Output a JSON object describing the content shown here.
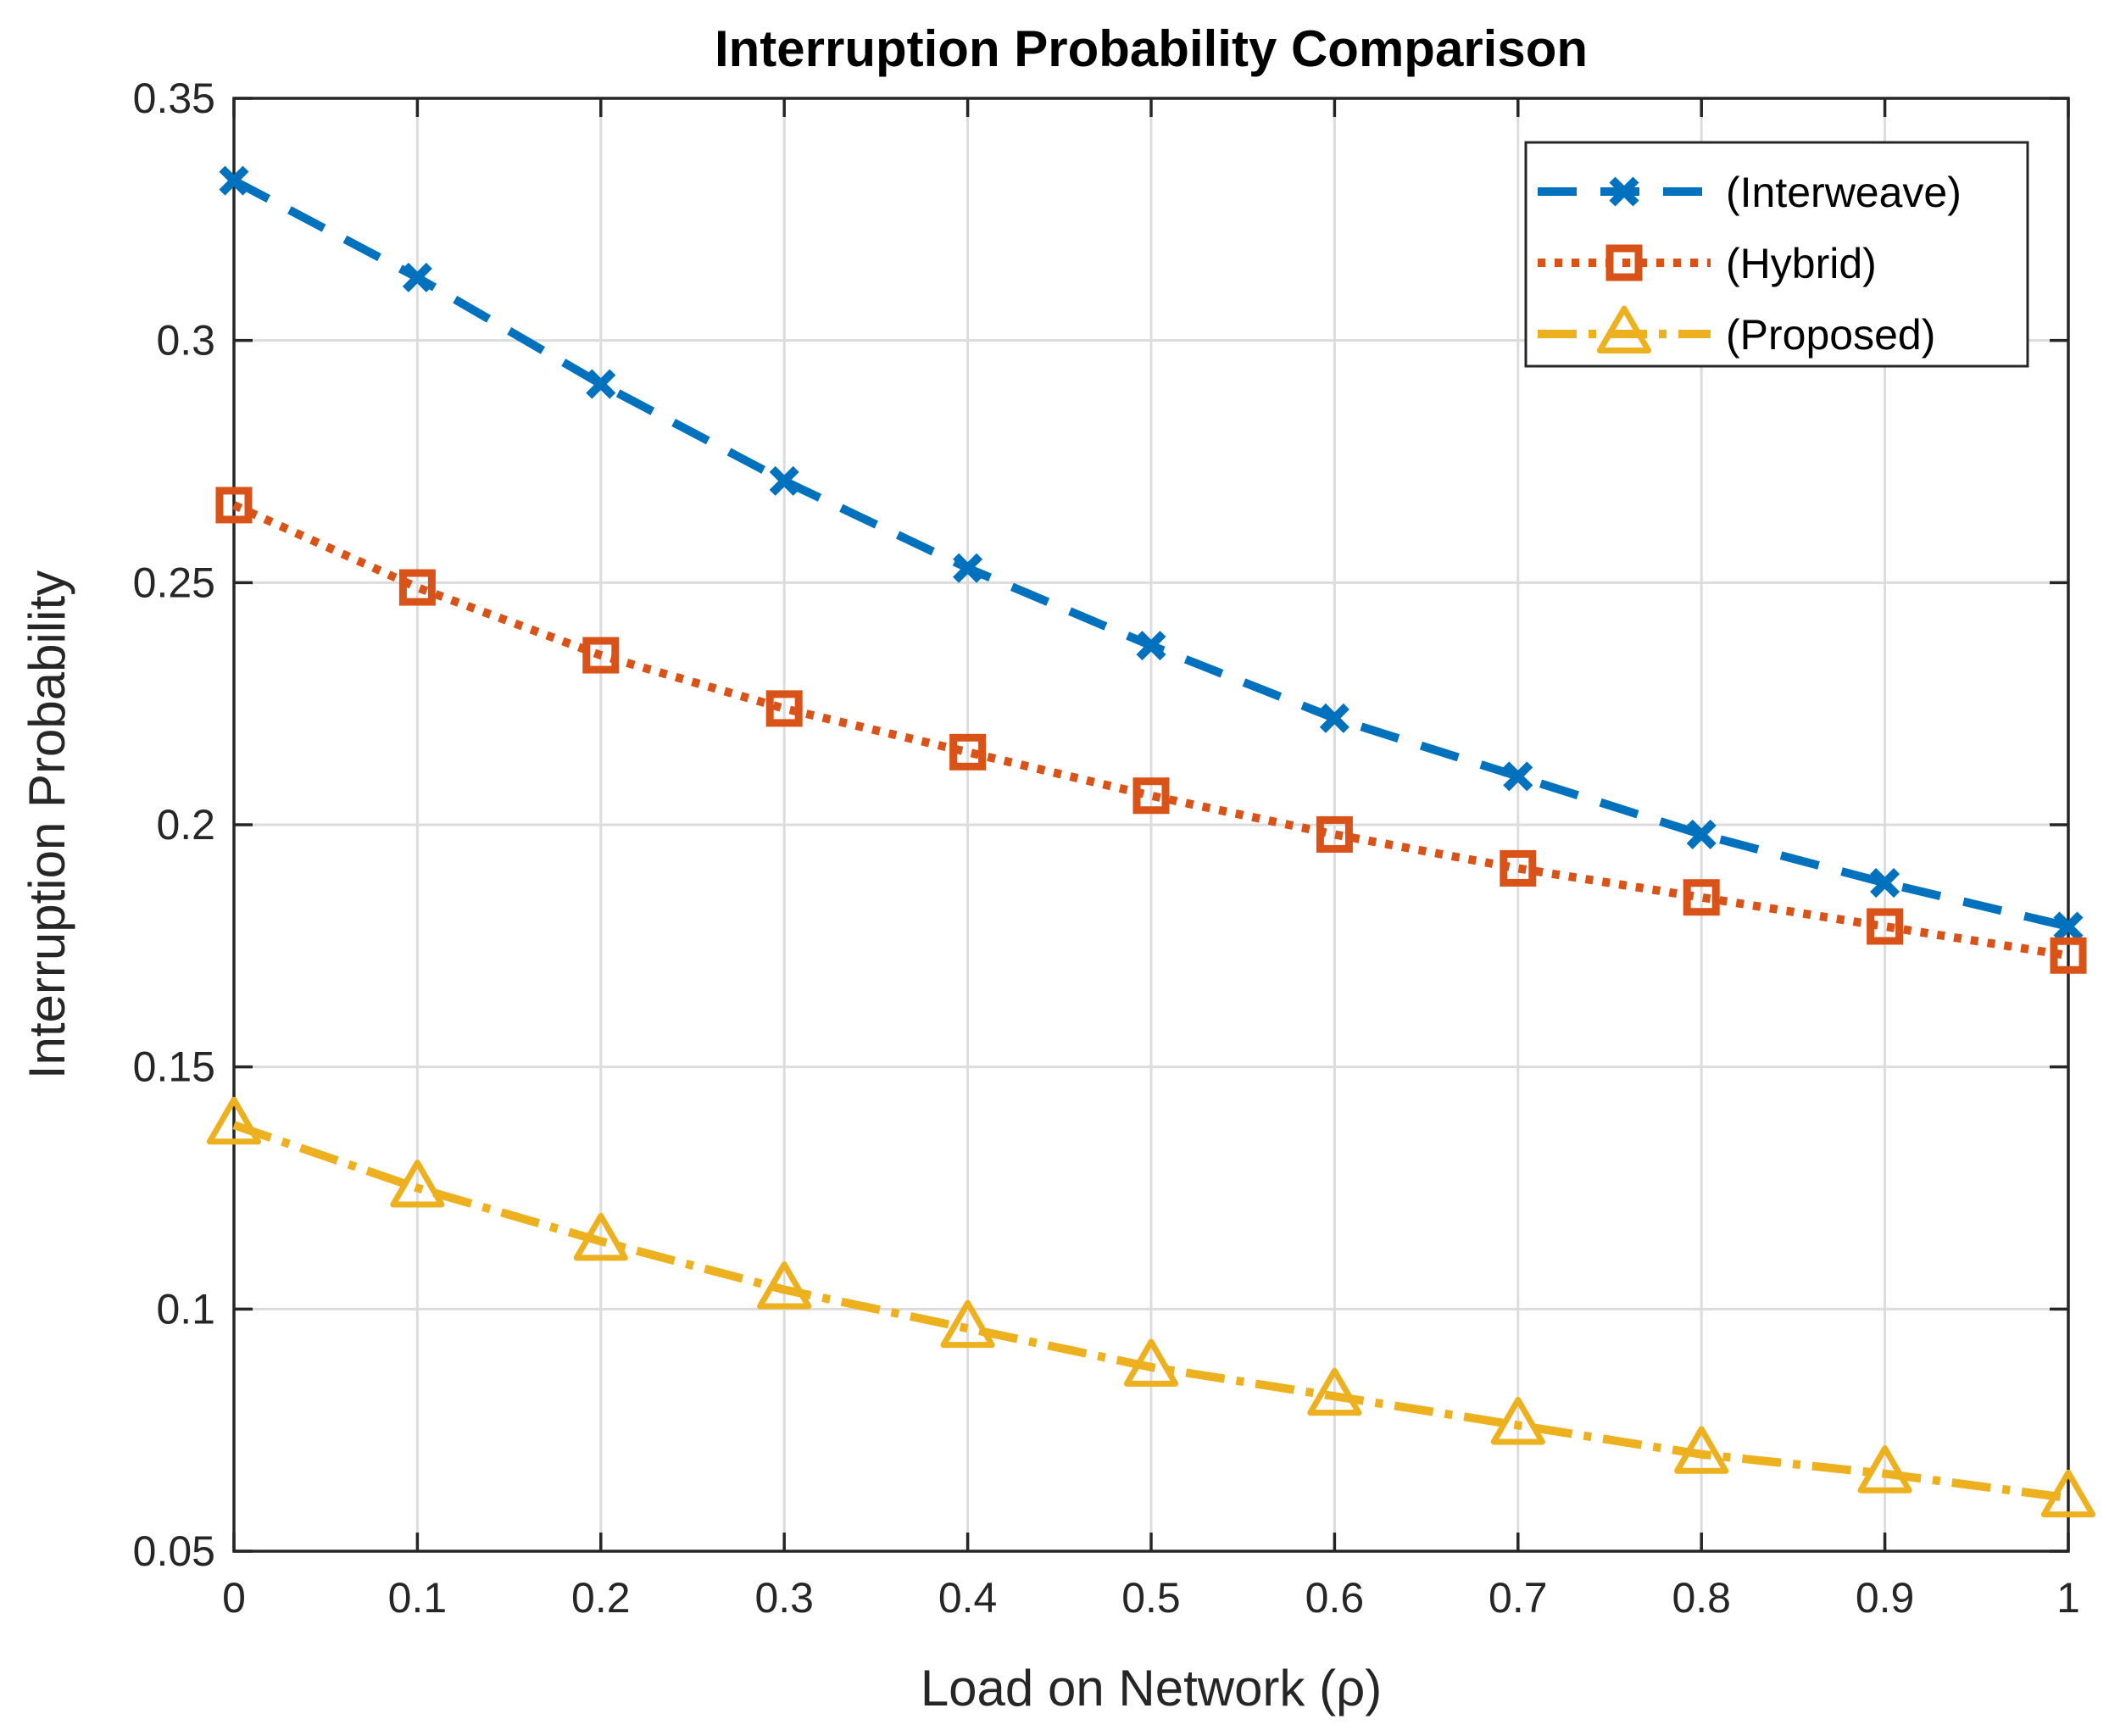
{
  "chart_data": {
    "type": "line",
    "title": "Interruption Probability Comparison",
    "xlabel": "Load on Network (ρ)",
    "ylabel": "Interruption Probability",
    "xlim": [
      0,
      1
    ],
    "ylim": [
      0.05,
      0.35
    ],
    "x_ticks": [
      "0",
      "0.1",
      "0.2",
      "0.3",
      "0.4",
      "0.5",
      "0.6",
      "0.7",
      "0.8",
      "0.9",
      "1"
    ],
    "y_ticks": [
      "0.05",
      "0.1",
      "0.15",
      "0.2",
      "0.25",
      "0.3",
      "0.35"
    ],
    "grid": true,
    "legend_position": "top-right",
    "x": [
      0,
      0.1,
      0.2,
      0.3,
      0.4,
      0.5,
      0.6,
      0.7,
      0.8,
      0.9,
      1.0
    ],
    "series": [
      {
        "name": "(Interweave)",
        "values": [
          0.333,
          0.313,
          0.291,
          0.271,
          0.253,
          0.237,
          0.222,
          0.21,
          0.198,
          0.188,
          0.179
        ],
        "color": "#0072BD",
        "line_style": "dashed",
        "marker": "x"
      },
      {
        "name": "(Hybrid)",
        "values": [
          0.266,
          0.249,
          0.235,
          0.224,
          0.215,
          0.206,
          0.198,
          0.191,
          0.185,
          0.179,
          0.173
        ],
        "color": "#D95319",
        "line_style": "dotted",
        "marker": "square"
      },
      {
        "name": "(Proposed)",
        "values": [
          0.138,
          0.125,
          0.114,
          0.104,
          0.096,
          0.088,
          0.082,
          0.076,
          0.07,
          0.066,
          0.061
        ],
        "color": "#EDB120",
        "line_style": "dash-dot",
        "marker": "triangle"
      }
    ]
  }
}
